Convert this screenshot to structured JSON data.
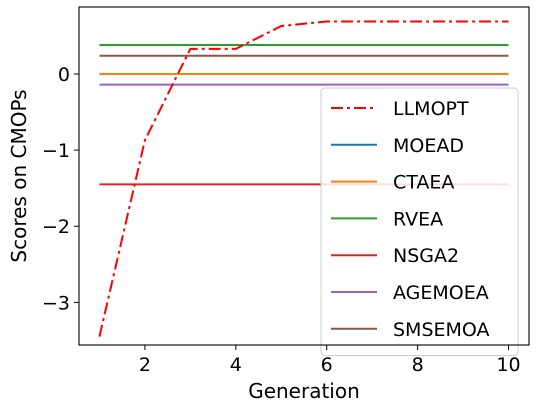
{
  "chart_data": {
    "type": "line",
    "title": "",
    "xlabel": "Generation",
    "ylabel": "Scores on CMOPs",
    "xlim": [
      0.55,
      10.45
    ],
    "ylim": [
      -3.56,
      0.88
    ],
    "xticks": [
      2,
      4,
      6,
      8,
      10
    ],
    "yticks": [
      -3,
      -2,
      -1,
      0
    ],
    "ytick_labels": [
      "−3",
      "−2",
      "−1",
      "0"
    ],
    "grid": false,
    "legend_position": "lower-right",
    "series": [
      {
        "name": "LLMOPT",
        "color": "#ff0000",
        "dash": "dashdot",
        "x": [
          1,
          2,
          3,
          4,
          5,
          6,
          7,
          8,
          9,
          10
        ],
        "y": [
          -3.45,
          -0.87,
          0.33,
          0.33,
          0.63,
          0.69,
          0.69,
          0.69,
          0.69,
          0.69
        ]
      },
      {
        "name": "MOEAD",
        "color": "#1f77b4",
        "dash": "solid",
        "x": [
          1,
          2,
          3,
          4,
          5,
          6,
          7,
          8,
          9,
          10
        ],
        "y": [
          0,
          0,
          0,
          0,
          0,
          0,
          0,
          0,
          0,
          0
        ]
      },
      {
        "name": "CTAEA",
        "color": "#ff7f0e",
        "dash": "solid",
        "x": [
          1,
          2,
          3,
          4,
          5,
          6,
          7,
          8,
          9,
          10
        ],
        "y": [
          0,
          0,
          0,
          0,
          0,
          0,
          0,
          0,
          0,
          0
        ]
      },
      {
        "name": "RVEA",
        "color": "#2ca02c",
        "dash": "solid",
        "x": [
          1,
          2,
          3,
          4,
          5,
          6,
          7,
          8,
          9,
          10
        ],
        "y": [
          0.38,
          0.38,
          0.38,
          0.38,
          0.38,
          0.38,
          0.38,
          0.38,
          0.38,
          0.38
        ]
      },
      {
        "name": "NSGA2",
        "color": "#d62728",
        "dash": "solid",
        "x": [
          1,
          2,
          3,
          4,
          5,
          6,
          7,
          8,
          9,
          10
        ],
        "y": [
          -1.45,
          -1.45,
          -1.45,
          -1.45,
          -1.45,
          -1.45,
          -1.45,
          -1.45,
          -1.45,
          -1.45
        ]
      },
      {
        "name": "AGEMOEA",
        "color": "#9467bd",
        "dash": "solid",
        "x": [
          1,
          2,
          3,
          4,
          5,
          6,
          7,
          8,
          9,
          10
        ],
        "y": [
          -0.14,
          -0.14,
          -0.14,
          -0.14,
          -0.14,
          -0.14,
          -0.14,
          -0.14,
          -0.14,
          -0.14
        ]
      },
      {
        "name": "SMSEMOA",
        "color": "#8c564b",
        "dash": "solid",
        "x": [
          1,
          2,
          3,
          4,
          5,
          6,
          7,
          8,
          9,
          10
        ],
        "y": [
          0.24,
          0.24,
          0.24,
          0.24,
          0.24,
          0.24,
          0.24,
          0.24,
          0.24,
          0.24
        ]
      }
    ]
  }
}
